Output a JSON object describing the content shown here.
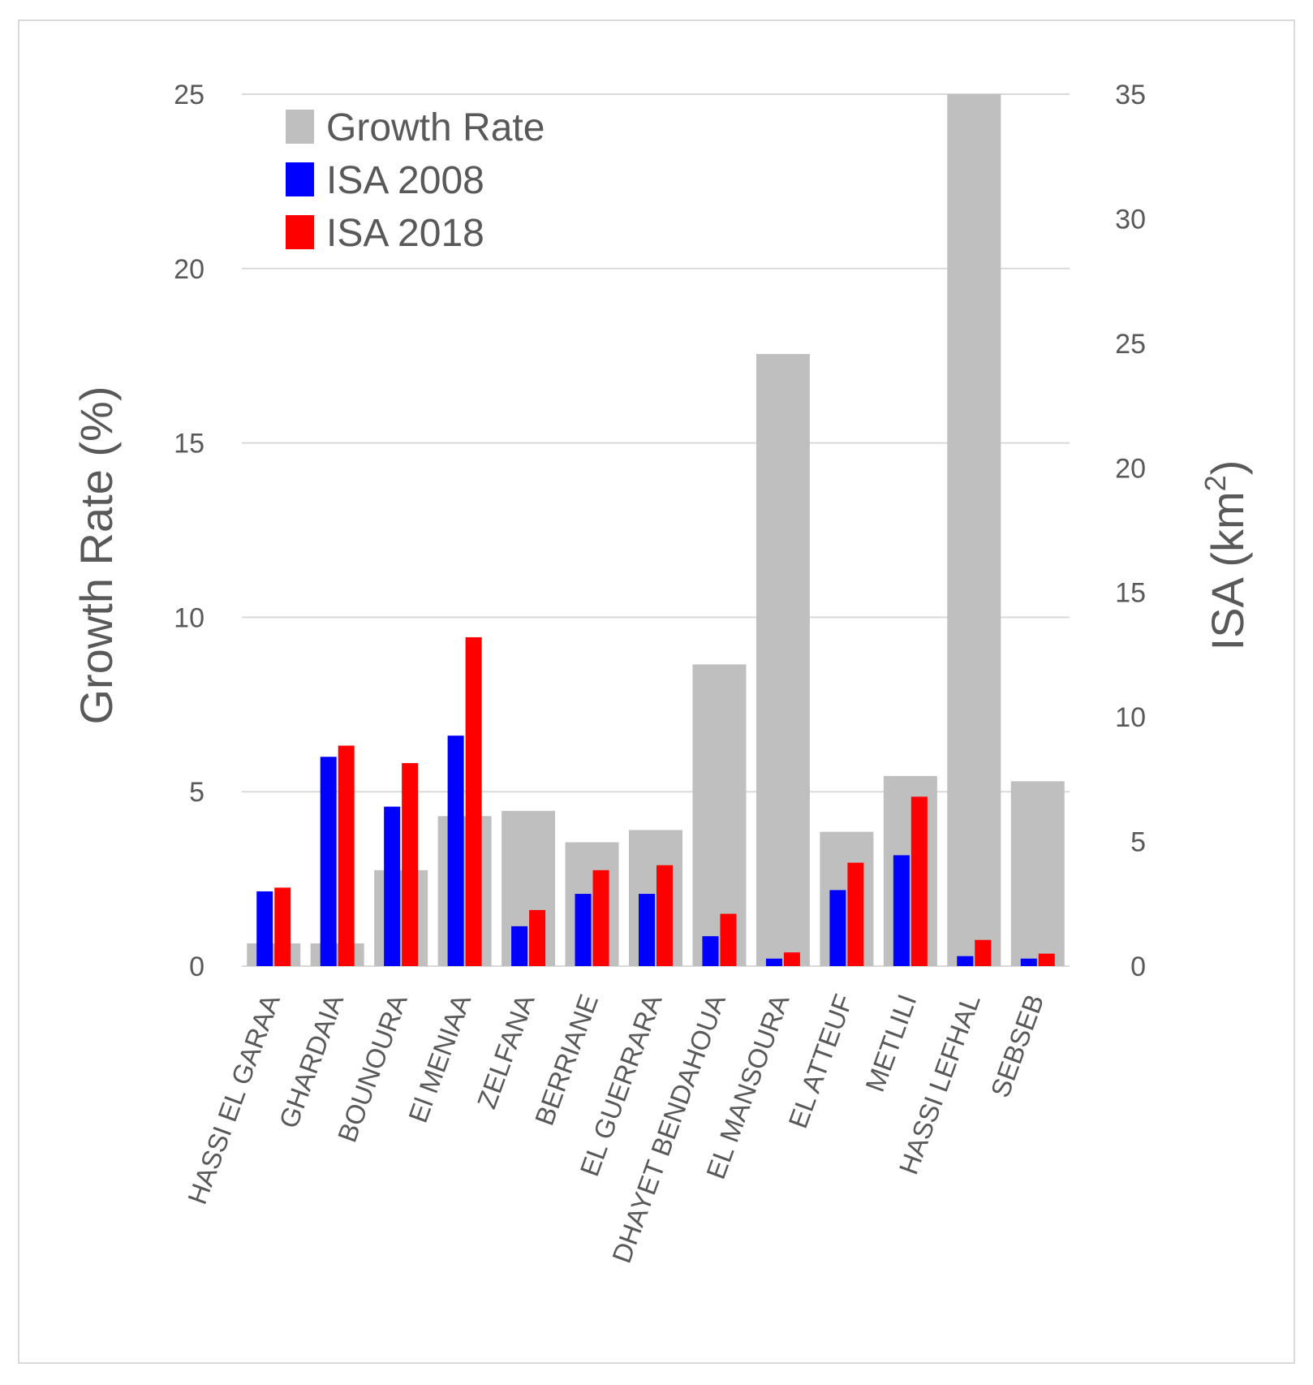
{
  "chart_data": {
    "type": "bar",
    "categories": [
      "HASSI EL GARAA",
      "GHARDAIA",
      "BOUNOURA",
      "El MENIAA",
      "ZELFANA",
      "BERRIANE",
      "EL GUERRARA",
      "DHAYET BENDAHOUA",
      "EL MANSOURA",
      "EL ATTEUF",
      "METLILI",
      "HASSI LEFHAL",
      "SEBSEB"
    ],
    "series": [
      {
        "name": "Growth Rate",
        "axis": "left",
        "color": "#bfbfbf",
        "values": [
          0.65,
          0.65,
          2.75,
          4.3,
          4.45,
          3.55,
          3.9,
          8.65,
          17.55,
          3.85,
          5.45,
          25.0,
          5.3
        ]
      },
      {
        "name": "ISA 2008",
        "axis": "right",
        "color": "#0000ff",
        "values": [
          3.0,
          8.4,
          6.4,
          9.25,
          1.6,
          2.9,
          2.9,
          1.2,
          0.3,
          3.05,
          4.45,
          0.4,
          0.3
        ]
      },
      {
        "name": "ISA 2018",
        "axis": "right",
        "color": "#ff0000",
        "values": [
          3.15,
          8.85,
          8.15,
          13.2,
          2.25,
          3.85,
          4.05,
          2.1,
          0.55,
          4.15,
          6.8,
          1.05,
          0.5
        ]
      }
    ],
    "ylabel": "Growth Rate (%)",
    "y2label_main": "ISA (km",
    "y2label_sup": "2",
    "y2label_end": ")",
    "ylim": [
      0,
      25
    ],
    "y2lim": [
      0,
      35
    ],
    "yticks": [
      "0",
      "5",
      "10",
      "15",
      "20",
      "25"
    ],
    "y2ticks": [
      "0",
      "5",
      "10",
      "15",
      "20",
      "25",
      "30",
      "35"
    ],
    "legend_position": "top-left",
    "grid": true
  }
}
